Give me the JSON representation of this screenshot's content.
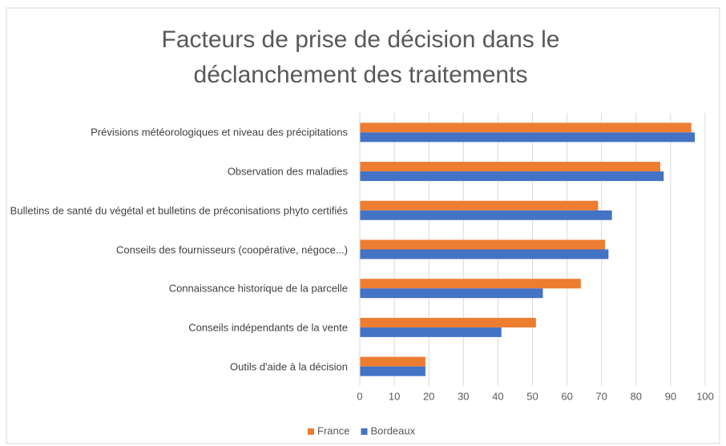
{
  "chart_data": {
    "type": "bar",
    "orientation": "horizontal",
    "title": "Facteurs de prise de décision dans le déclanchement des traitements",
    "categories": [
      "Prévisions météorologiques et niveau des précipitations",
      "Observation des maladies",
      "Bulletins de santé du végétal et bulletins de préconisations phyto certifiés",
      "Conseils des fournisseurs (coopérative, négoce...)",
      "Connaissance historique de la parcelle",
      "Conseils indépendants de la vente",
      "Outils d'aide à la décision"
    ],
    "series": [
      {
        "name": "France",
        "color": "#ed7d31",
        "values": [
          96,
          87,
          69,
          71,
          64,
          51,
          19
        ]
      },
      {
        "name": "Bordeaux",
        "color": "#4472c4",
        "values": [
          97,
          88,
          73,
          72,
          53,
          41,
          19
        ]
      }
    ],
    "xlim": [
      0,
      100
    ],
    "xticks": [
      0,
      10,
      20,
      30,
      40,
      50,
      60,
      70,
      80,
      90,
      100
    ],
    "grid": true,
    "legend": "bottom"
  }
}
